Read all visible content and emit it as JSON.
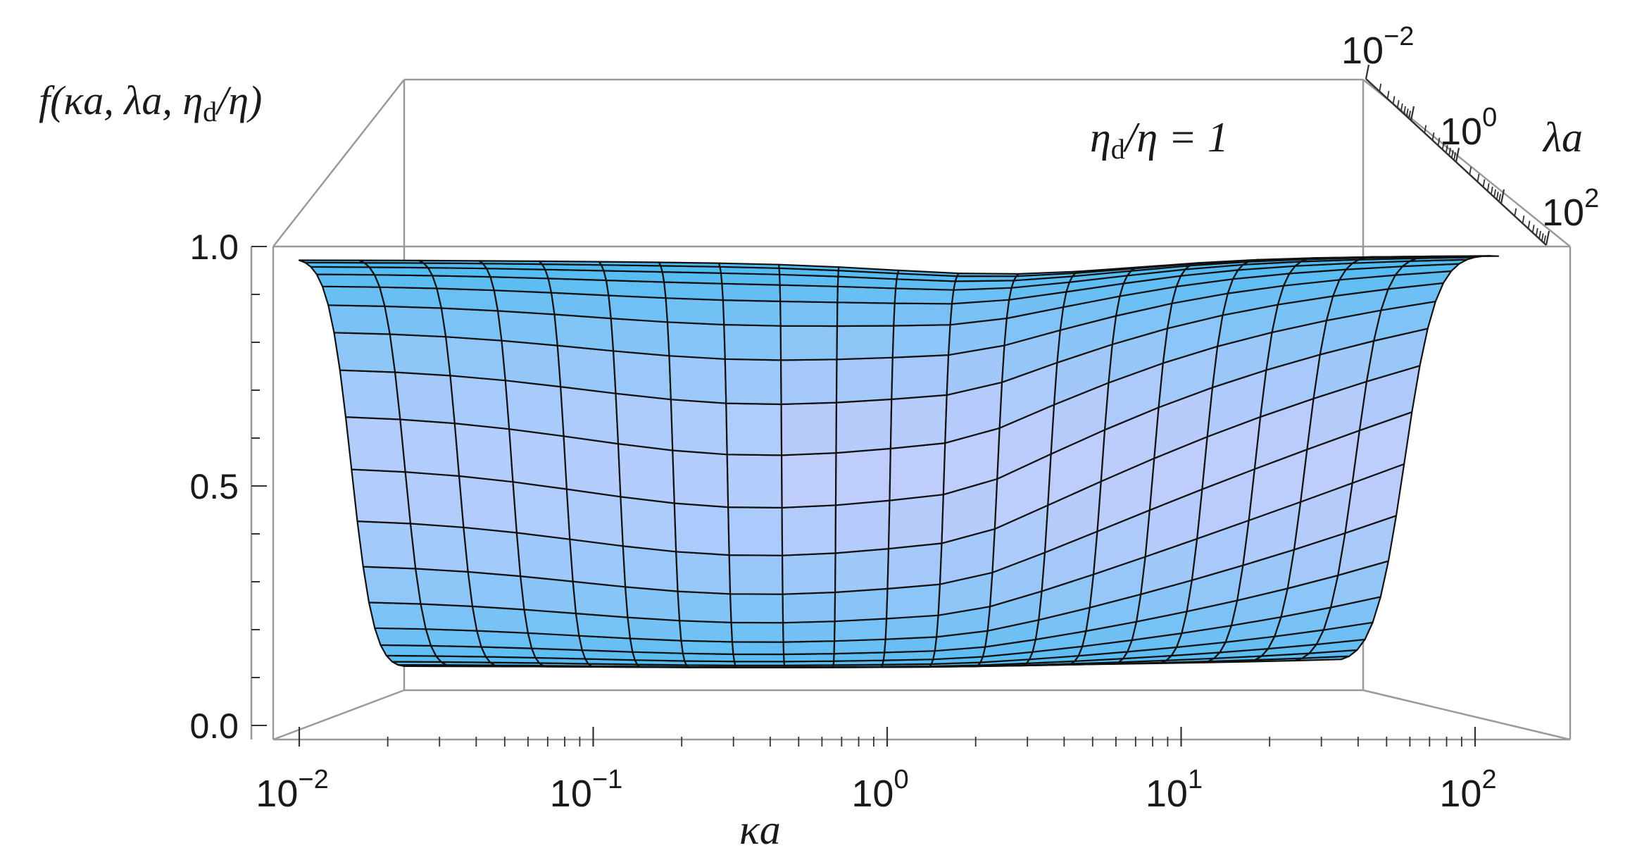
{
  "chart_data": {
    "type": "surface",
    "title": "",
    "zlabel": "f(κa, λa, η_d/η)",
    "zlabel_parts": {
      "base": "f(κa, λa, η",
      "sub": "d",
      "tail": "/η)"
    },
    "annotation": {
      "base": "η",
      "sub": "d",
      "tail": "/η = 1"
    },
    "xlabel": "κa",
    "ylabel": "λa",
    "x_scale": "log",
    "y_scale": "log",
    "x_range": [
      0.01,
      100
    ],
    "y_range": [
      0.01,
      100
    ],
    "z_range": [
      0,
      1
    ],
    "x_ticks": [
      {
        "base": "10",
        "exp": "−2"
      },
      {
        "base": "10",
        "exp": "−1"
      },
      {
        "base": "10",
        "exp": "0"
      },
      {
        "base": "10",
        "exp": "1"
      },
      {
        "base": "10",
        "exp": "2"
      }
    ],
    "y_ticks": [
      {
        "base": "10",
        "exp": "−2"
      },
      {
        "base": "10",
        "exp": "0"
      },
      {
        "base": "10",
        "exp": "2"
      }
    ],
    "z_ticks": [
      "0.0",
      "0.5",
      "1.0"
    ],
    "z_tick_values": [
      0,
      0.5,
      1.0
    ],
    "grid_lines_x": 21,
    "grid_lines_y": 21,
    "surface_description_values": {
      "log10_lambda_a": [
        -2,
        -1,
        0,
        1,
        2
      ],
      "f_at_kappa_a_0.1": [
        0.02,
        0.19,
        0.57,
        0.94,
        1.0
      ],
      "f_at_kappa_a_1": [
        0.02,
        0.2,
        0.5,
        0.88,
        1.0
      ],
      "f_at_kappa_a_10": [
        0.02,
        0.12,
        0.42,
        0.82,
        1.0
      ]
    },
    "colors": {
      "surface": "#5ec2f6",
      "surface_light": "#b9ddfb",
      "mesh": "#111111",
      "box": "#9a9a9a"
    }
  }
}
